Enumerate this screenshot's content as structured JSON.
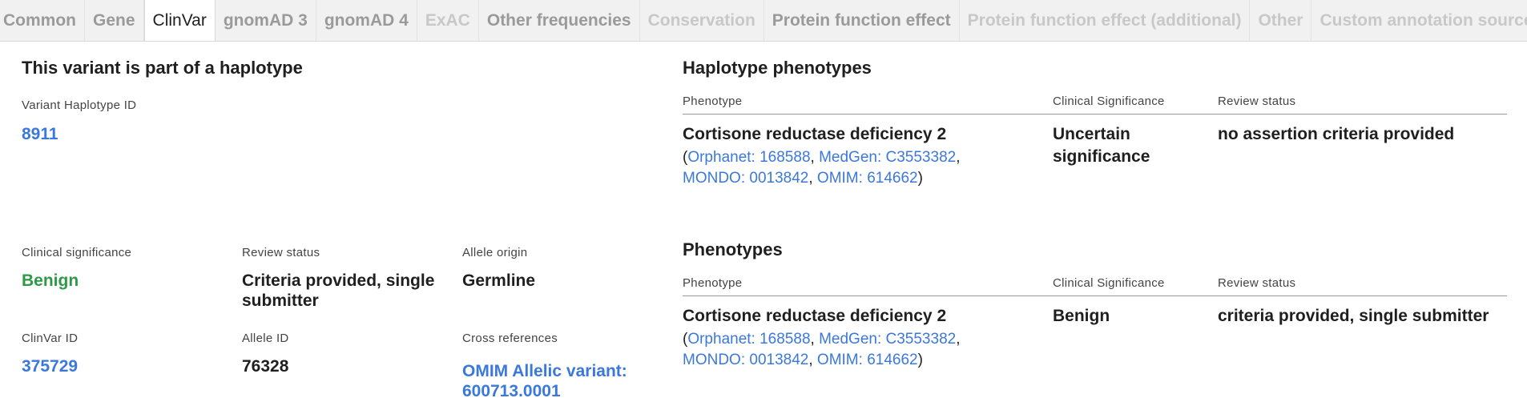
{
  "tabs": [
    {
      "label": "Common",
      "state": "semi"
    },
    {
      "label": "Gene",
      "state": "semi"
    },
    {
      "label": "ClinVar",
      "state": "active"
    },
    {
      "label": "gnomAD 3",
      "state": "semi"
    },
    {
      "label": "gnomAD 4",
      "state": "semi"
    },
    {
      "label": "ExAC",
      "state": "dim"
    },
    {
      "label": "Other frequencies",
      "state": "semi"
    },
    {
      "label": "Conservation",
      "state": "dim"
    },
    {
      "label": "Protein function effect",
      "state": "semi"
    },
    {
      "label": "Protein function effect (additional)",
      "state": "dim"
    },
    {
      "label": "Other",
      "state": "dim"
    },
    {
      "label": "Custom annotation sources",
      "state": "dim"
    }
  ],
  "haplotype": {
    "title": "This variant is part of a haplotype",
    "id_label": "Variant Haplotype ID",
    "id_value": "8911"
  },
  "details": {
    "clinical_significance_label": "Clinical significance",
    "clinical_significance_value": "Benign",
    "review_status_label": "Review status",
    "review_status_value_1": "Criteria provided, single",
    "review_status_value_2": "submitter",
    "allele_origin_label": "Allele origin",
    "allele_origin_value": "Germline",
    "clinvar_id_label": "ClinVar ID",
    "clinvar_id_value": "375729",
    "allele_id_label": "Allele ID",
    "allele_id_value": "76328",
    "cross_refs_label": "Cross references",
    "cross_refs_value_1": "OMIM Allelic variant:",
    "cross_refs_value_2": "600713.0001"
  },
  "haplotype_phenotypes": {
    "title": "Haplotype phenotypes",
    "headers": {
      "phenotype": "Phenotype",
      "significance": "Clinical Significance",
      "review": "Review status"
    },
    "row": {
      "phenotype": "Cortisone reductase deficiency 2",
      "ref_open": "(",
      "orphanet": "Orphanet: 168588",
      "sep1": ", ",
      "medgen": "MedGen: C3553382",
      "sep2": ",",
      "mondo": "MONDO: 0013842",
      "sep3": ", ",
      "omim": "OMIM: 614662",
      "ref_close": ")",
      "significance_1": "Uncertain",
      "significance_2": "significance",
      "review": "no assertion criteria provided"
    }
  },
  "phenotypes": {
    "title": "Phenotypes",
    "headers": {
      "phenotype": "Phenotype",
      "significance": "Clinical Significance",
      "review": "Review status"
    },
    "row": {
      "phenotype": "Cortisone reductase deficiency 2",
      "ref_open": "(",
      "orphanet": "Orphanet: 168588",
      "sep1": ", ",
      "medgen": "MedGen: C3553382",
      "sep2": ",",
      "mondo": "MONDO: 0013842",
      "sep3": ", ",
      "omim": "OMIM: 614662",
      "ref_close": ")",
      "significance": "Benign",
      "review": "criteria provided, single submitter"
    }
  },
  "colors": {
    "link": "#3b78dc",
    "benign": "#2e9a46",
    "tab_bar": "#f1f1f1"
  }
}
